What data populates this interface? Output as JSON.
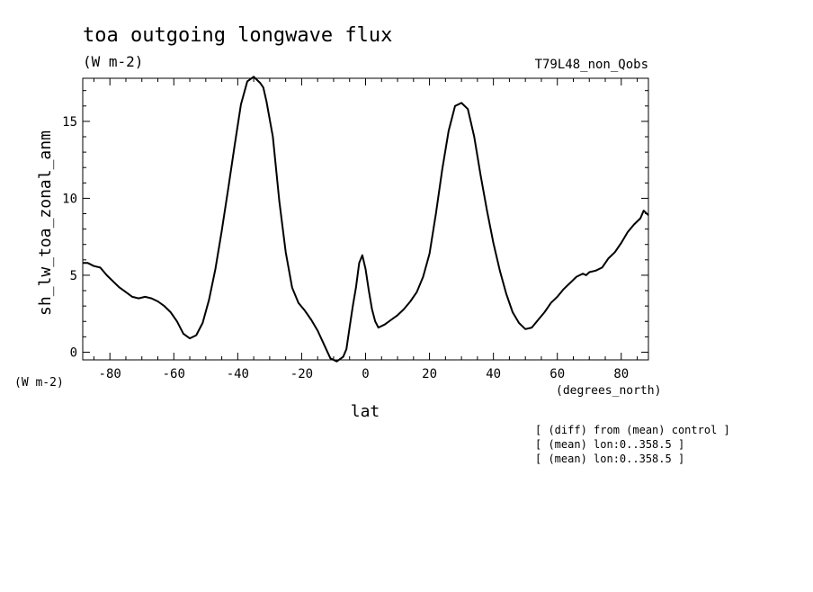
{
  "chart_data": {
    "type": "line",
    "title": "toa outgoing longwave flux",
    "units_top": "(W m-2)",
    "run_label": "T79L48_non_Qobs",
    "ylabel": "sh_lw_toa_zonal_anm",
    "y_units": "(W m-2)",
    "xlabel": "lat",
    "x_units": "(degrees_north)",
    "xlim": [
      -88.5,
      88.5
    ],
    "ylim": [
      -0.5,
      17.8
    ],
    "x_ticks": [
      -80,
      -60,
      -40,
      -20,
      0,
      20,
      40,
      60,
      80
    ],
    "y_ticks": [
      0,
      5,
      10,
      15
    ],
    "x_ticklabels": [
      "-80",
      "-60",
      "-40",
      "-20",
      "0",
      "20",
      "40",
      "60",
      "80"
    ],
    "y_ticklabels": [
      "0",
      "5",
      "10",
      "15"
    ],
    "grid": false,
    "series": [
      {
        "color": "#000000",
        "x": [
          -88.5,
          -87,
          -85,
          -83,
          -81,
          -79,
          -77,
          -75,
          -73,
          -71,
          -69,
          -67,
          -65,
          -63,
          -61,
          -59,
          -57,
          -55,
          -53,
          -51,
          -49,
          -47,
          -45,
          -43,
          -41,
          -39,
          -37,
          -35,
          -33,
          -32,
          -31,
          -29,
          -27,
          -25,
          -23,
          -21,
          -19,
          -17,
          -15,
          -13,
          -11,
          -9,
          -7,
          -6,
          -5,
          -4,
          -3,
          -2,
          -1,
          0,
          1,
          2,
          3,
          4,
          6,
          8,
          10,
          12,
          14,
          16,
          18,
          20,
          22,
          24,
          26,
          28,
          30,
          32,
          34,
          36,
          38,
          40,
          42,
          44,
          46,
          48,
          50,
          52,
          54,
          56,
          58,
          60,
          62,
          64,
          66,
          67,
          68,
          69,
          70,
          72,
          74,
          76,
          78,
          80,
          82,
          84,
          86,
          87,
          88.5
        ],
        "y": [
          5.8,
          5.8,
          5.6,
          5.5,
          5.0,
          4.6,
          4.2,
          3.9,
          3.6,
          3.5,
          3.6,
          3.5,
          3.3,
          3.0,
          2.6,
          2.0,
          1.2,
          0.9,
          1.1,
          1.9,
          3.4,
          5.4,
          7.9,
          10.6,
          13.4,
          16.1,
          17.6,
          17.9,
          17.5,
          17.2,
          16.3,
          14.0,
          9.8,
          6.5,
          4.2,
          3.2,
          2.7,
          2.1,
          1.4,
          0.5,
          -0.4,
          -0.6,
          -0.3,
          0.2,
          1.6,
          3.0,
          4.2,
          5.8,
          6.3,
          5.4,
          4.0,
          2.8,
          2.0,
          1.6,
          1.8,
          2.1,
          2.4,
          2.8,
          3.3,
          3.9,
          4.9,
          6.4,
          9.0,
          11.9,
          14.4,
          16.0,
          16.2,
          15.8,
          14.0,
          11.5,
          9.2,
          7.1,
          5.3,
          3.8,
          2.6,
          1.9,
          1.5,
          1.6,
          2.1,
          2.6,
          3.2,
          3.6,
          4.1,
          4.5,
          4.9,
          5.0,
          5.1,
          5.0,
          5.2,
          5.3,
          5.5,
          6.1,
          6.5,
          7.1,
          7.8,
          8.3,
          8.7,
          9.2,
          8.9
        ]
      }
    ],
    "annotations": [
      "[ (diff) from (mean) control ]",
      "[ (mean) lon:0..358.5 ]",
      "[ (mean) lon:0..358.5 ]"
    ]
  }
}
